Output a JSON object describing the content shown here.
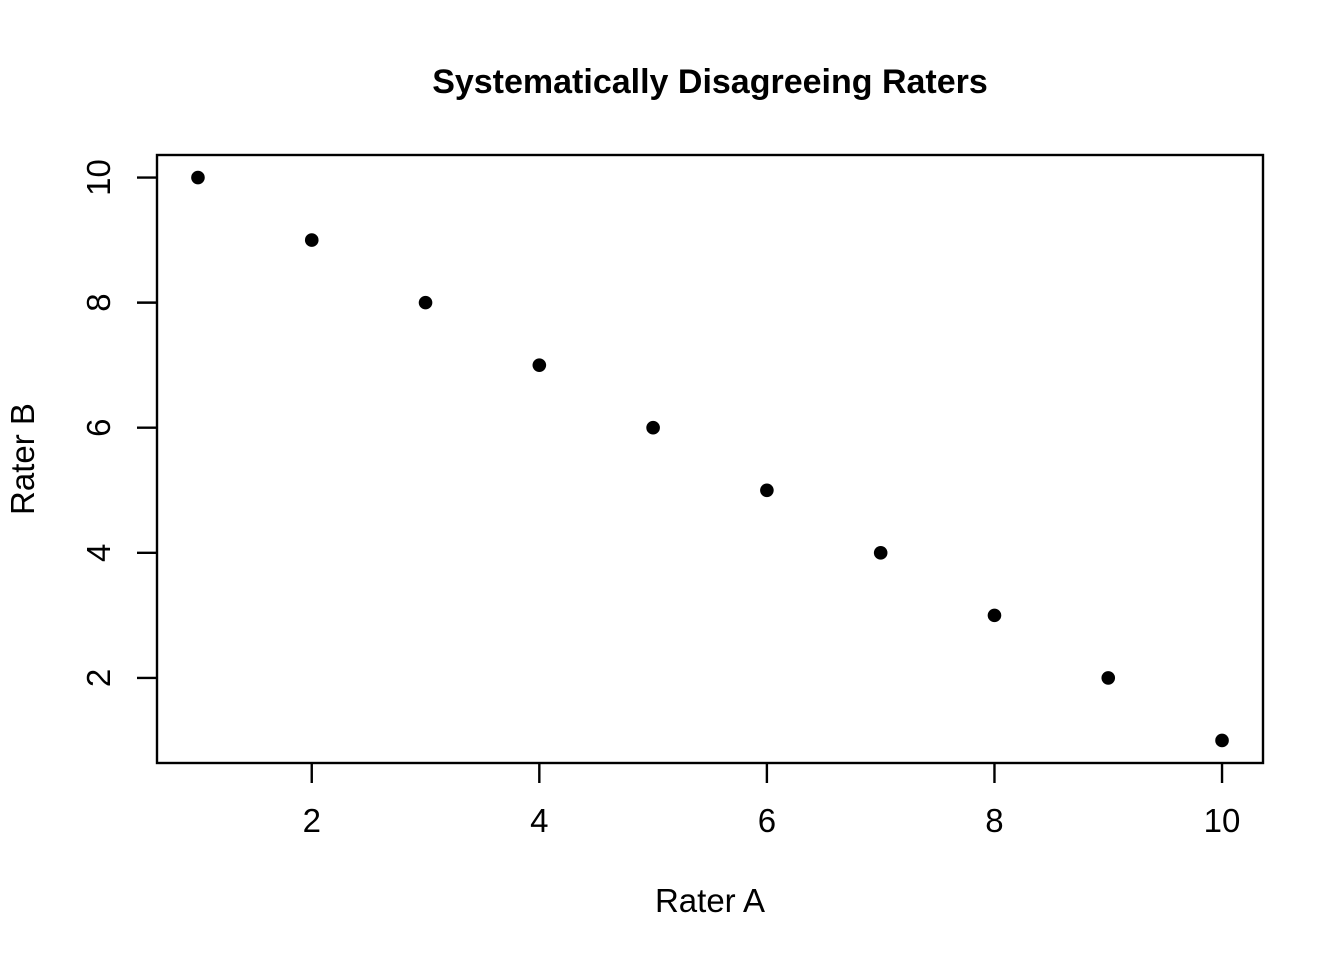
{
  "page": {
    "background": "#ffffff"
  },
  "chart_data": {
    "type": "scatter",
    "title": "Systematically Disagreeing Raters",
    "xlabel": "Rater A",
    "ylabel": "Rater B",
    "x": [
      1,
      2,
      3,
      4,
      5,
      6,
      7,
      8,
      9,
      10
    ],
    "y": [
      10,
      9,
      8,
      7,
      6,
      5,
      4,
      3,
      2,
      1
    ],
    "xlim": [
      0.64,
      10.36
    ],
    "ylim": [
      0.64,
      10.36
    ],
    "xticks": [
      2,
      4,
      6,
      8,
      10
    ],
    "yticks": [
      2,
      4,
      6,
      8,
      10
    ],
    "point_color": "#000000",
    "axis_color": "#000000",
    "background_color": "#ffffff",
    "grid": false,
    "legend": null,
    "marker": "filled-circle"
  }
}
